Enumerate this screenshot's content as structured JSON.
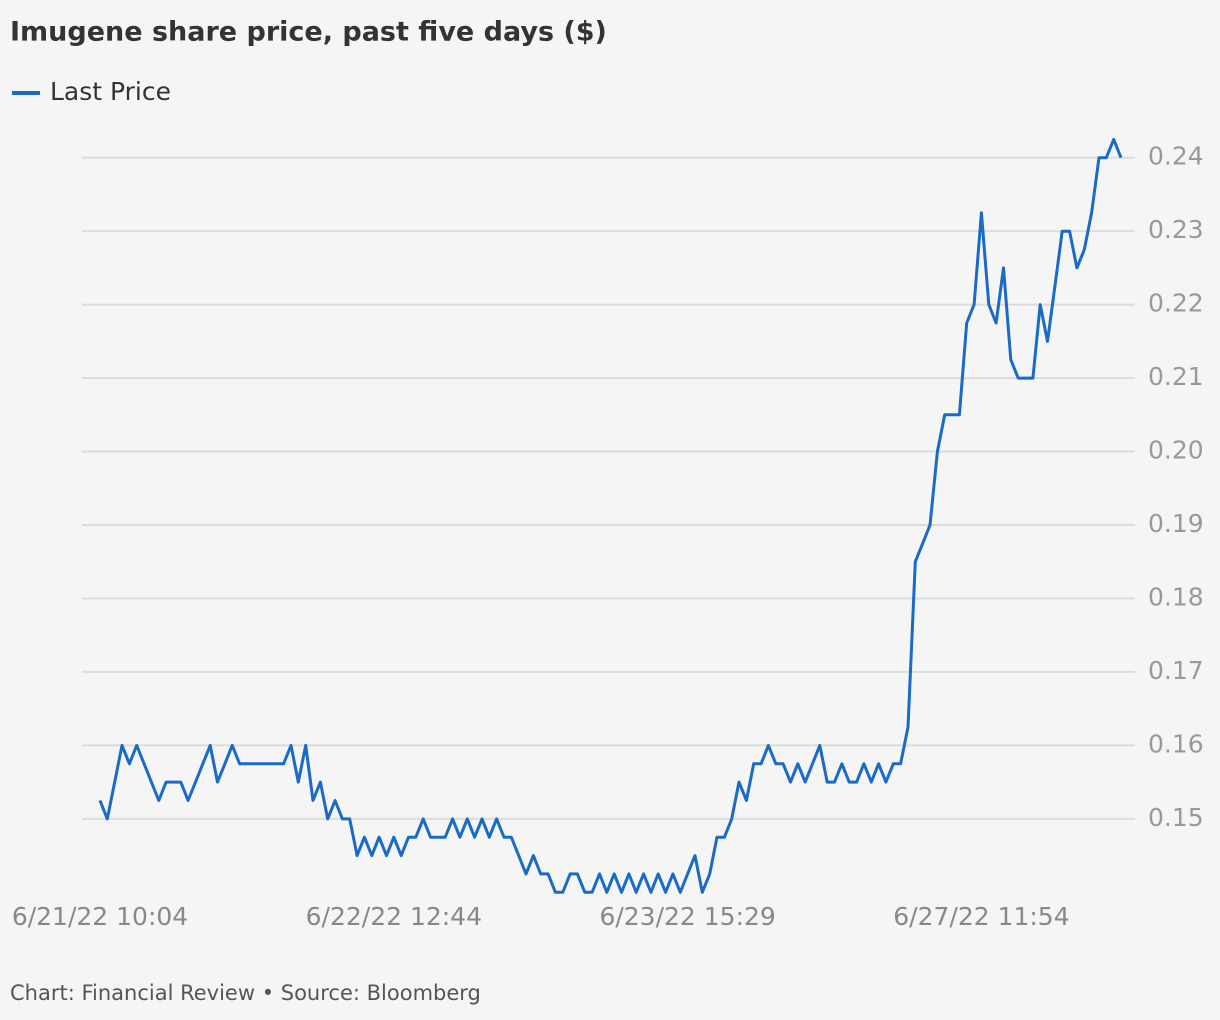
{
  "chart_data": {
    "type": "line",
    "title": "Imugene share price, past five days ($)",
    "source": "Chart: Financial Review • Source: Bloomberg",
    "categories": [
      "6/21/22 10:04",
      null,
      null,
      null,
      null,
      null,
      null,
      null,
      null,
      null,
      null,
      null,
      null,
      null,
      null,
      null,
      null,
      null,
      null,
      null,
      null,
      null,
      null,
      null,
      null,
      null,
      null,
      null,
      null,
      null,
      null,
      null,
      null,
      null,
      null,
      null,
      null,
      null,
      null,
      null,
      "6/22/22 12:44",
      null,
      null,
      null,
      null,
      null,
      null,
      null,
      null,
      null,
      null,
      null,
      null,
      null,
      null,
      null,
      null,
      null,
      null,
      null,
      null,
      null,
      null,
      null,
      null,
      null,
      null,
      null,
      null,
      null,
      null,
      null,
      null,
      null,
      null,
      null,
      null,
      null,
      null,
      null,
      "6/23/22 15:29",
      null,
      null,
      null,
      null,
      null,
      null,
      null,
      null,
      null,
      null,
      null,
      null,
      null,
      null,
      null,
      null,
      null,
      null,
      null,
      null,
      null,
      null,
      null,
      null,
      null,
      null,
      null,
      null,
      null,
      null,
      null,
      null,
      null,
      null,
      null,
      null,
      null,
      null,
      null,
      "6/27/22 11:54",
      null,
      null,
      null,
      null,
      null,
      null,
      null,
      null,
      null,
      null,
      null,
      null,
      null,
      null,
      null,
      null,
      null,
      null,
      null
    ],
    "series": [
      {
        "name": "Last Price",
        "color": "#1a6ac7",
        "values": [
          0.1525,
          0.15,
          0.155,
          0.16,
          0.1575,
          0.16,
          0.1575,
          0.155,
          0.1525,
          0.155,
          0.155,
          0.155,
          0.1525,
          0.155,
          0.1575,
          0.16,
          0.155,
          0.1575,
          0.16,
          0.1575,
          0.1575,
          0.1575,
          0.1575,
          0.1575,
          0.1575,
          0.1575,
          0.16,
          0.155,
          0.16,
          0.1525,
          0.155,
          0.15,
          0.1525,
          0.15,
          0.15,
          0.145,
          0.1475,
          0.145,
          0.1475,
          0.145,
          0.1475,
          0.145,
          0.1475,
          0.1475,
          0.15,
          0.1475,
          0.1475,
          0.1475,
          0.15,
          0.1475,
          0.15,
          0.1475,
          0.15,
          0.1475,
          0.15,
          0.1475,
          0.1475,
          0.145,
          0.1425,
          0.145,
          0.1425,
          0.1425,
          0.14,
          0.14,
          0.1425,
          0.1425,
          0.14,
          0.14,
          0.1425,
          0.14,
          0.1425,
          0.14,
          0.1425,
          0.14,
          0.1425,
          0.14,
          0.1425,
          0.14,
          0.1425,
          0.14,
          0.1425,
          0.145,
          0.14,
          0.1425,
          0.1475,
          0.1475,
          0.15,
          0.155,
          0.1525,
          0.1575,
          0.1575,
          0.16,
          0.1575,
          0.1575,
          0.155,
          0.1575,
          0.155,
          0.1575,
          0.16,
          0.155,
          0.155,
          0.1575,
          0.155,
          0.155,
          0.1575,
          0.155,
          0.1575,
          0.155,
          0.1575,
          0.1575,
          0.1625,
          0.185,
          0.1875,
          0.19,
          0.2,
          0.205,
          0.205,
          0.205,
          0.2175,
          0.22,
          0.2325,
          0.22,
          0.2175,
          0.225,
          0.2125,
          0.21,
          0.21,
          0.21,
          0.22,
          0.215,
          0.2225,
          0.23,
          0.23,
          0.225,
          0.2275,
          0.2325,
          0.24,
          0.24,
          0.2425,
          0.24
        ]
      }
    ],
    "ylim": [
      0.138,
      0.245
    ],
    "yticks": [
      0.15,
      0.16,
      0.17,
      0.18,
      0.19,
      {
        "value": 0.2,
        "label": "0.20"
      },
      0.21,
      0.22,
      0.23,
      0.24
    ],
    "grid": true,
    "legend": "top-left"
  }
}
